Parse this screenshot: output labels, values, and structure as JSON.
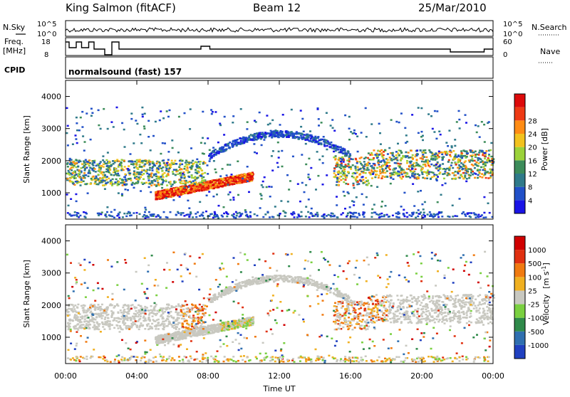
{
  "header": {
    "station": "King Salmon (fitACF)",
    "beam": "Beam 12",
    "date": "25/Mar/2010"
  },
  "side_labels": {
    "nsky": "N.Sky",
    "freq": "Freq.",
    "freq_unit": "[MHz]",
    "cpid": "CPID",
    "nsearch": "N.Search",
    "nave": "Nave"
  },
  "cpid_text": "normalsound (fast) 157",
  "chart_data": [
    {
      "type": "line",
      "name": "noise",
      "y_ticks_left": [
        "10^5",
        "10^0"
      ],
      "y_ticks_right": [
        "10^5",
        "10^0"
      ]
    },
    {
      "type": "line",
      "name": "frequency",
      "y_ticks_left": [
        "18",
        "8"
      ],
      "y_ticks_right": [
        "60",
        "0"
      ],
      "x": [
        0,
        0.2,
        0.2,
        0.6,
        0.6,
        0.9,
        0.9,
        1.3,
        1.3,
        1.6,
        1.6,
        2.2,
        2.2,
        2.6,
        2.6,
        3.0,
        3.0,
        7.6,
        7.6,
        8.1,
        8.1,
        21.6,
        21.6,
        23.5,
        23.5,
        24
      ],
      "values": [
        17,
        17,
        13,
        13,
        17,
        17,
        13,
        13,
        17,
        17,
        12,
        12,
        8,
        8,
        17,
        17,
        12,
        12,
        14,
        14,
        12,
        12,
        10,
        10,
        12,
        12
      ]
    },
    {
      "type": "heatmap",
      "name": "power",
      "ylabel": "Slant Range [km]",
      "y_ticks": [
        1000,
        2000,
        3000,
        4000
      ],
      "ylim": [
        180,
        4500
      ],
      "xlim": [
        0,
        24
      ],
      "colorbar_label": "Power [dB]",
      "colorbar_ticks": [
        "4",
        "8",
        "12",
        "16",
        "20",
        "24",
        "28"
      ],
      "colorbar_colors": [
        "#1a14e6",
        "#2150c8",
        "#2f7a8a",
        "#3c8c5a",
        "#9bd23a",
        "#f2c21e",
        "#ff8c14",
        "#ee3a14",
        "#dd0a0a"
      ]
    },
    {
      "type": "heatmap",
      "name": "velocity",
      "ylabel": "Slant Range [km]",
      "y_ticks": [
        1000,
        2000,
        3000,
        4000
      ],
      "ylim": [
        180,
        4500
      ],
      "xlim": [
        0,
        24
      ],
      "xlabel": "Time UT",
      "x_ticks": [
        "00:00",
        "04:00",
        "08:00",
        "12:00",
        "16:00",
        "20:00",
        "00:00"
      ],
      "colorbar_label": "Velocity",
      "colorbar_unit": "[m s",
      "colorbar_unit_sup": "-1",
      "colorbar_unit_end": "]",
      "colorbar_ticks": [
        "1000",
        "500",
        "100",
        "25",
        "-25",
        "-100",
        "-500",
        "-1000"
      ],
      "colorbar_colors": [
        "#2040c0",
        "#2f6fb0",
        "#2f8a4a",
        "#7ad040",
        "#c8c8c0",
        "#f0b020",
        "#f07a10",
        "#e03010",
        "#d00000"
      ]
    }
  ]
}
